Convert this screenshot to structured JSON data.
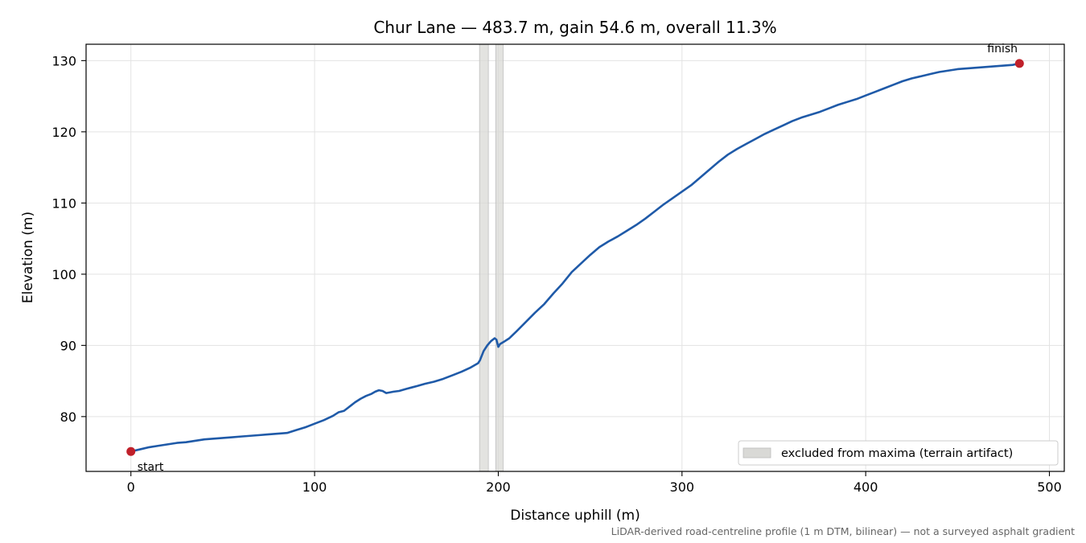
{
  "chart_data": {
    "type": "line",
    "title": "Chur Lane — 483.7 m, gain 54.6 m, overall 11.3%",
    "xlabel": "Distance uphill (m)",
    "ylabel": "Elevation (m)",
    "footnote": "LiDAR-derived road-centreline profile (1 m DTM, bilinear) — not a surveyed asphalt gradient",
    "xlim": [
      -24.4,
      508.1
    ],
    "ylim": [
      72.3,
      132.3
    ],
    "x_ticks": [
      0,
      100,
      200,
      300,
      400,
      500
    ],
    "y_ticks": [
      80,
      90,
      100,
      110,
      120,
      130
    ],
    "grid": true,
    "line_color": "#1f5aa8",
    "marker_color": "#c0202a",
    "band_color": "#d9d9d6",
    "series": [
      {
        "x": [
          0,
          5,
          10,
          15,
          20,
          25,
          30,
          35,
          40,
          45,
          50,
          55,
          60,
          65,
          70,
          75,
          80,
          85,
          90,
          95,
          100,
          105,
          110,
          113,
          116,
          118,
          120,
          122,
          125,
          128,
          131,
          133,
          135,
          137,
          139,
          141,
          143,
          146,
          150,
          153,
          156,
          160,
          165,
          170,
          175,
          180,
          185,
          189,
          190,
          192,
          194,
          196,
          198,
          199,
          200,
          201,
          203,
          206,
          210,
          215,
          220,
          225,
          230,
          235,
          240,
          245,
          250,
          255,
          260,
          265,
          270,
          275,
          280,
          285,
          290,
          295,
          300,
          305,
          310,
          315,
          320,
          325,
          330,
          335,
          340,
          345,
          350,
          355,
          360,
          365,
          370,
          375,
          380,
          385,
          390,
          395,
          400,
          405,
          410,
          415,
          420,
          425,
          430,
          435,
          440,
          445,
          450,
          455,
          460,
          465,
          470,
          475,
          480,
          483.7
        ],
        "y": [
          75.1,
          75.4,
          75.7,
          75.9,
          76.1,
          76.3,
          76.4,
          76.6,
          76.8,
          76.9,
          77.0,
          77.1,
          77.2,
          77.3,
          77.4,
          77.5,
          77.6,
          77.7,
          78.1,
          78.5,
          79.0,
          79.5,
          80.1,
          80.6,
          80.8,
          81.2,
          81.6,
          82.0,
          82.5,
          82.9,
          83.2,
          83.5,
          83.7,
          83.6,
          83.3,
          83.4,
          83.5,
          83.6,
          83.9,
          84.1,
          84.3,
          84.6,
          84.9,
          85.3,
          85.8,
          86.3,
          86.9,
          87.5,
          87.9,
          89.2,
          90.0,
          90.6,
          91.0,
          90.8,
          89.8,
          90.2,
          90.5,
          91.0,
          92.0,
          93.3,
          94.6,
          95.8,
          97.3,
          98.7,
          100.3,
          101.5,
          102.7,
          103.8,
          104.6,
          105.3,
          106.1,
          106.9,
          107.8,
          108.8,
          109.8,
          110.7,
          111.6,
          112.5,
          113.6,
          114.7,
          115.8,
          116.8,
          117.6,
          118.3,
          119.0,
          119.7,
          120.3,
          120.9,
          121.5,
          122.0,
          122.4,
          122.8,
          123.3,
          123.8,
          124.2,
          124.6,
          125.1,
          125.6,
          126.1,
          126.6,
          127.1,
          127.5,
          127.8,
          128.1,
          128.4,
          128.6,
          128.8,
          128.9,
          129.0,
          129.1,
          129.2,
          129.3,
          129.4,
          129.6
        ]
      }
    ],
    "excluded_bands": [
      [
        189.8,
        194.6
      ],
      [
        198.6,
        202.6
      ]
    ],
    "legend": {
      "label": "excluded from maxima (terrain artifact)",
      "placement": "lower-right"
    },
    "points": [
      {
        "label": "start",
        "x": 0,
        "y": 75.1
      },
      {
        "label": "finish",
        "x": 483.7,
        "y": 129.6
      }
    ]
  }
}
